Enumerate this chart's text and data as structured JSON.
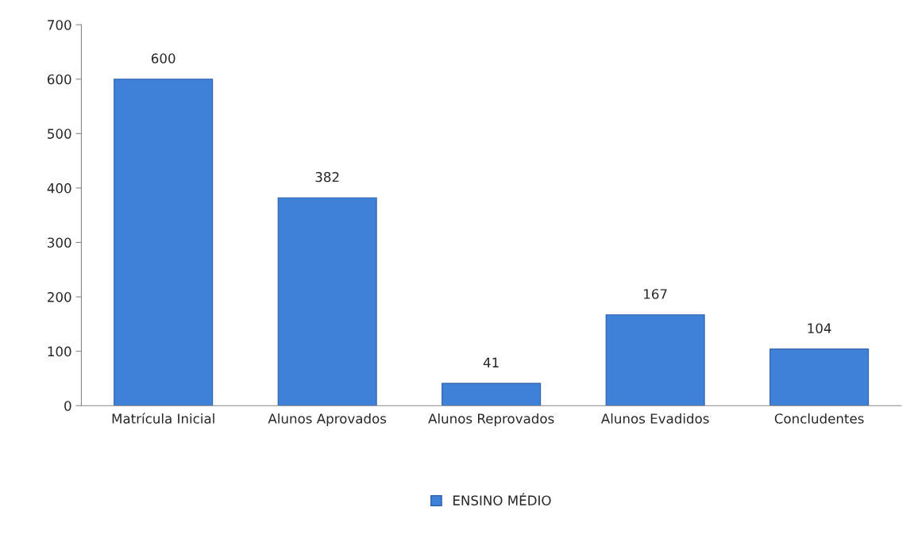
{
  "chart_data": {
    "type": "bar",
    "categories": [
      "Matrícula Inicial",
      "Alunos Aprovados",
      "Alunos Reprovados",
      "Alunos Evadidos",
      "Concludentes"
    ],
    "series": [
      {
        "name": "ENSINO MÉDIO",
        "color": "#3f80d8",
        "values": [
          600,
          382,
          41,
          167,
          104
        ]
      }
    ],
    "ylim": [
      0,
      700
    ],
    "yticks": [
      0,
      100,
      200,
      300,
      400,
      500,
      600,
      700
    ],
    "grid": false,
    "legend": "bottom",
    "data_labels": true
  }
}
